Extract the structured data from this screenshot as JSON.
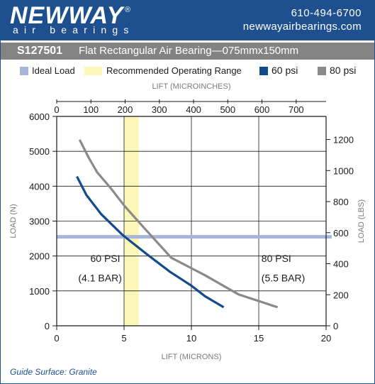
{
  "header": {
    "brand": "NEWWAY",
    "brand_sub": "air bearings",
    "registered": "®",
    "phone": "610-494-6700",
    "website": "newwayairbearings.com",
    "bg_color": "#1e4f8e"
  },
  "subheader": {
    "model": "S127501",
    "description": "Flat Rectangular Air Bearing—075mmx150mm",
    "bg_color": "#838383"
  },
  "legend": {
    "items": [
      {
        "label": "Ideal Load",
        "color": "#a9b4d9"
      },
      {
        "label": "Recommended Operating Range",
        "color": "#fbf7b8"
      },
      {
        "label": "60 psi",
        "color": "#124a8c"
      },
      {
        "label": "80 psi",
        "color": "#8a8a8a"
      }
    ]
  },
  "footer": {
    "guide_surface": "Guide Surface: Granite"
  },
  "chart_data": {
    "type": "line",
    "x_bottom": {
      "label": "LIFT (MICRONS)",
      "range": [
        0,
        20
      ],
      "ticks": [
        0,
        5,
        10,
        15,
        20
      ]
    },
    "x_top": {
      "label": "LIFT (MICROINCHES)",
      "range": [
        0,
        787.4
      ],
      "ticks": [
        0,
        100,
        200,
        300,
        400,
        500,
        600,
        700
      ]
    },
    "y_left": {
      "label": "LOAD (N)",
      "range": [
        0,
        6000
      ],
      "ticks": [
        0,
        1000,
        2000,
        3000,
        4000,
        5000,
        6000
      ]
    },
    "y_right": {
      "label": "LOAD (LBS)",
      "range": [
        0,
        1348.9
      ],
      "ticks": [
        0,
        200,
        400,
        600,
        800,
        1000,
        1200
      ]
    },
    "grid": true,
    "ideal_load": {
      "value": 2550,
      "color": "#a9b4d9"
    },
    "recommended_range": {
      "x": [
        5,
        6.1
      ],
      "color": "#fbf7b8"
    },
    "series": [
      {
        "name": "60 psi",
        "color": "#124a8c",
        "x": [
          1.5,
          2.2,
          3.3,
          4.9,
          6.7,
          8.4,
          10.0,
          11.0,
          12.4
        ],
        "y": [
          4280,
          3750,
          3200,
          2600,
          2050,
          1550,
          1150,
          850,
          530
        ]
      },
      {
        "name": "80 psi",
        "color": "#8a8a8a",
        "x": [
          1.7,
          2.4,
          3.0,
          4.0,
          5.0,
          6.5,
          8.5,
          11.0,
          13.5,
          16.4
        ],
        "y": [
          5330,
          4800,
          4400,
          3950,
          3450,
          2800,
          1950,
          1450,
          900,
          530
        ]
      }
    ],
    "annotations": [
      {
        "text": "60 PSI",
        "x": 2.5,
        "y": 1830
      },
      {
        "text": "(4.1 BAR)",
        "x": 1.6,
        "y": 1270
      },
      {
        "text": "80 PSI",
        "x": 15.2,
        "y": 1830
      },
      {
        "text": "(5.5 BAR)",
        "x": 15.2,
        "y": 1270
      }
    ]
  }
}
